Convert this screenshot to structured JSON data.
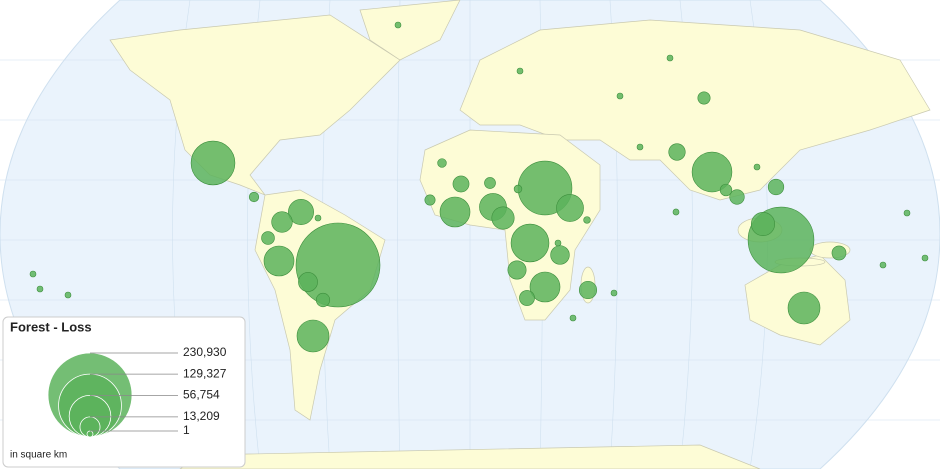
{
  "chart_data": {
    "type": "bubble_map",
    "legend": {
      "title": "Forest - Loss",
      "note": "in square km",
      "ticks": [
        {
          "value": 230930,
          "label": "230,930"
        },
        {
          "value": 129327,
          "label": "129,327"
        },
        {
          "value": 56754,
          "label": "56,754"
        },
        {
          "value": 13209,
          "label": "13,209"
        },
        1
      ]
    },
    "color": "#5cb35c",
    "values": [
      230930,
      142000,
      95000,
      63000,
      52000,
      47000,
      33500,
      33500,
      29500,
      29500,
      29500,
      24000,
      24000,
      21000,
      18000,
      16500,
      14000,
      12000,
      11500,
      11000,
      10000,
      9000,
      8500,
      8000,
      7500,
      7000,
      6500,
      6000,
      5500,
      5000,
      4500,
      4000,
      3500,
      3000,
      2500,
      2000,
      1500,
      1200,
      1000,
      800,
      600,
      500,
      400,
      300,
      200,
      150,
      100,
      80,
      60,
      40,
      30,
      20,
      10,
      5
    ]
  }
}
